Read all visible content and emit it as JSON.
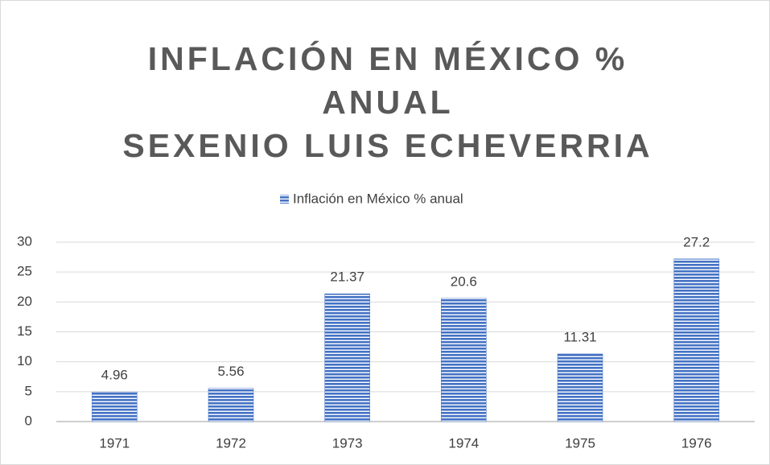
{
  "chart_data": {
    "type": "bar",
    "title": [
      "INFLACIÓN EN MÉXICO %",
      "ANUAL",
      "SEXENIO LUIS ECHEVERRIA"
    ],
    "categories": [
      "1971",
      "1972",
      "1973",
      "1974",
      "1975",
      "1976"
    ],
    "series": [
      {
        "name": "Inflación en México % anual",
        "color": "#4472c4",
        "values": [
          4.96,
          5.56,
          21.37,
          20.6,
          11.31,
          27.2
        ]
      }
    ],
    "ylim": [
      0,
      30
    ],
    "yticks": [
      0,
      5,
      10,
      15,
      20,
      25,
      30
    ],
    "grid": true,
    "legend": "top"
  }
}
